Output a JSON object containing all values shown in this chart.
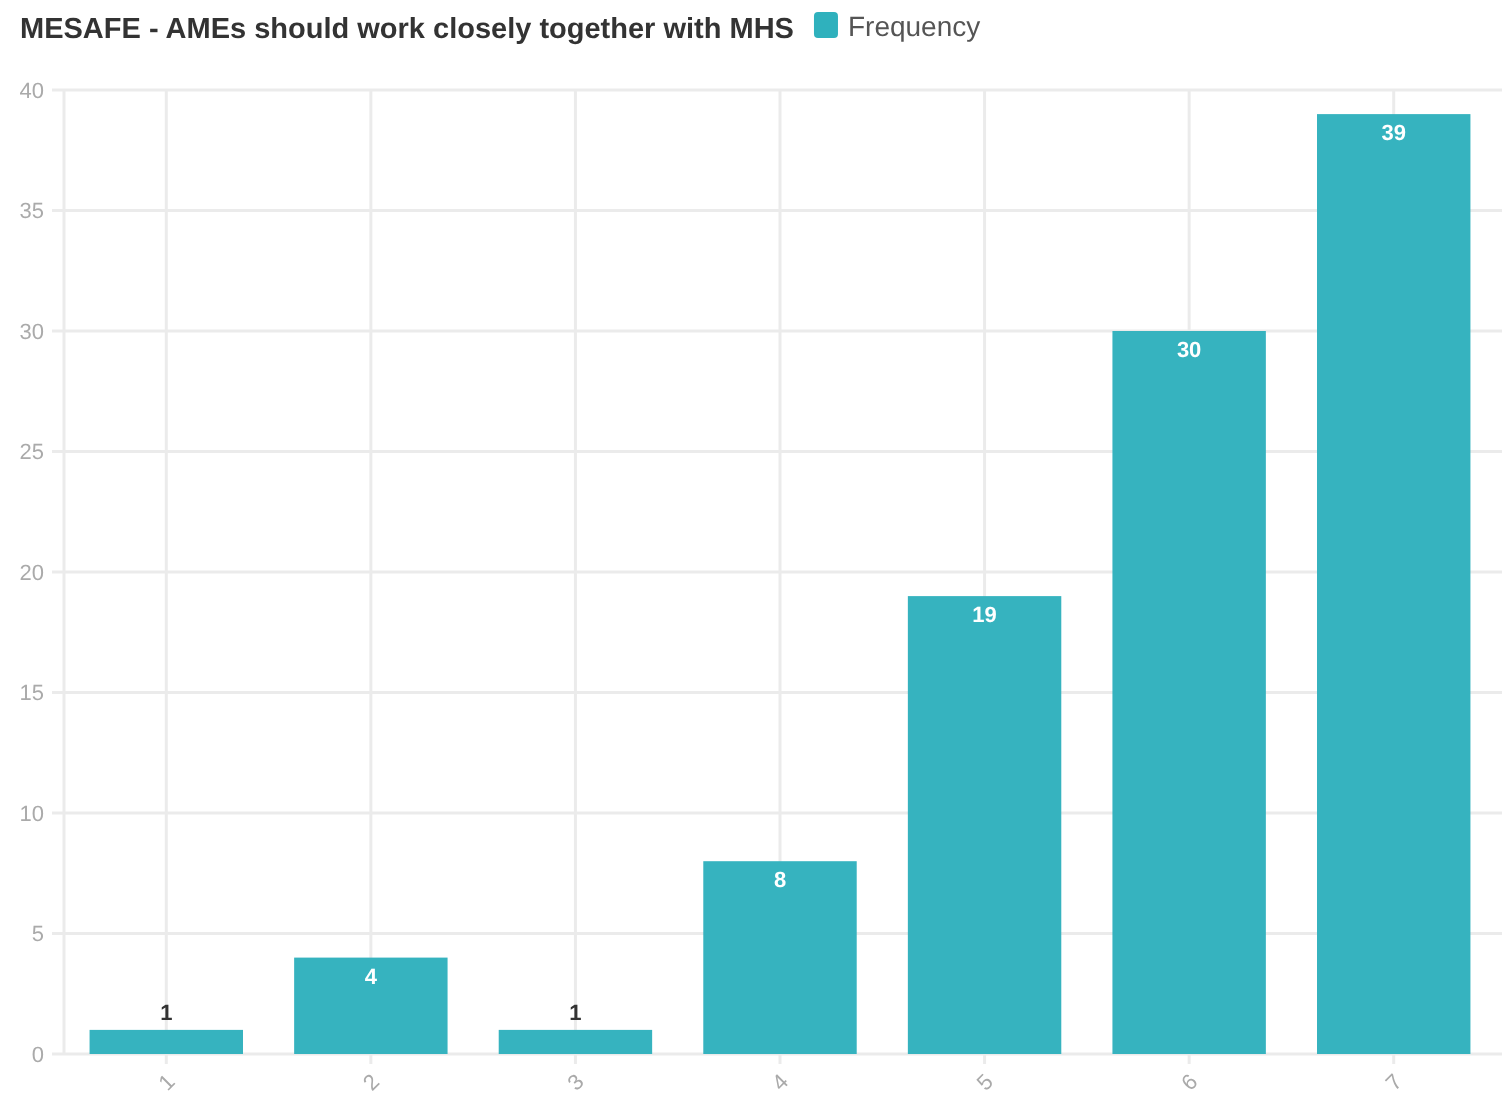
{
  "chart_data": {
    "type": "bar",
    "title": "MESAFE - AMEs should work closely together with MHS",
    "categories": [
      "1",
      "2",
      "3",
      "4",
      "5",
      "6",
      "7"
    ],
    "series": [
      {
        "name": "Frequency",
        "color": "#2fb1bd",
        "values": [
          1,
          4,
          1,
          8,
          19,
          30,
          39
        ]
      }
    ],
    "ylim": [
      0,
      40
    ],
    "yticks": [
      0,
      5,
      10,
      15,
      20,
      25,
      30,
      35,
      40
    ],
    "grid": true,
    "legend": "top",
    "data_labels": true
  }
}
